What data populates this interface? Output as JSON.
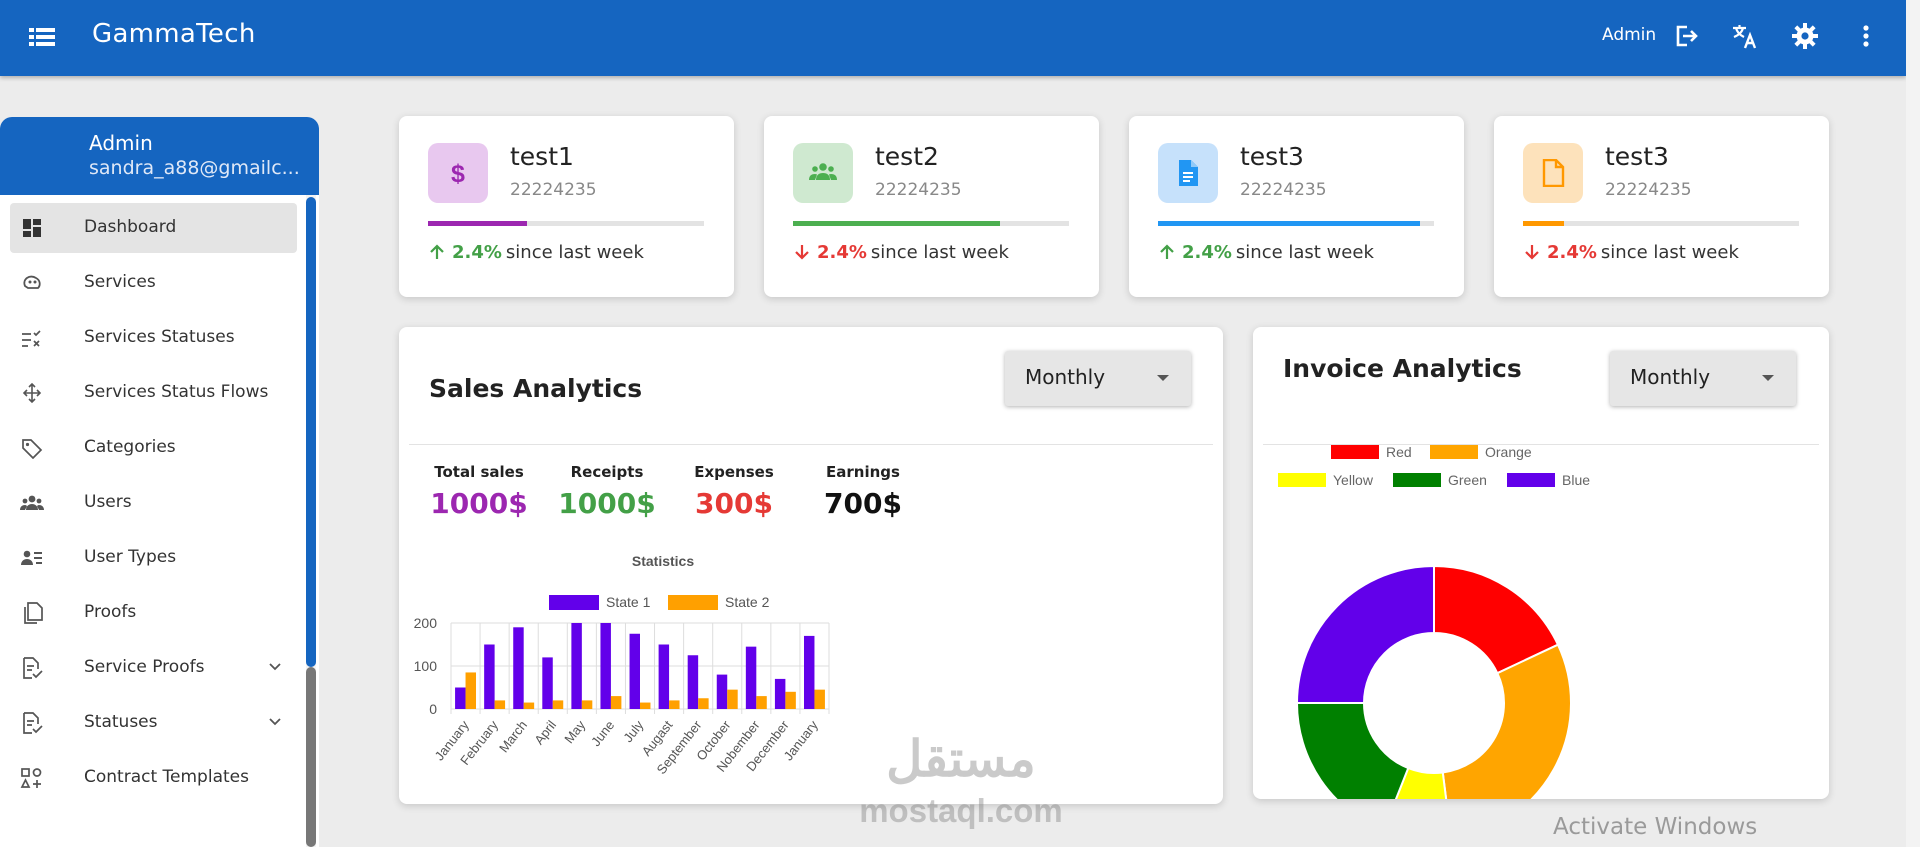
{
  "app": {
    "brand": "GammaTech",
    "user": "Admin"
  },
  "sidebar": {
    "name": "Admin",
    "email": "sandra_a88@gmailc...",
    "items": [
      {
        "label": "Dashboard",
        "icon": "dashboard-icon"
      },
      {
        "label": "Services",
        "icon": "services-icon"
      },
      {
        "label": "Services Statuses",
        "icon": "checklist-icon"
      },
      {
        "label": "Services Status Flows",
        "icon": "flow-icon"
      },
      {
        "label": "Categories",
        "icon": "tags-icon"
      },
      {
        "label": "Users",
        "icon": "users-icon"
      },
      {
        "label": "User Types",
        "icon": "user-types-icon"
      },
      {
        "label": "Proofs",
        "icon": "proofs-icon"
      },
      {
        "label": "Service Proofs",
        "icon": "doc-check-icon"
      },
      {
        "label": "Statuses",
        "icon": "doc-check-icon"
      },
      {
        "label": "Contract Templates",
        "icon": "shapes-icon"
      }
    ]
  },
  "stats": [
    {
      "title": "test1",
      "number": "22224235",
      "pct": "2.4%",
      "suffix": "since last week",
      "direction": "up",
      "progress": 0.36,
      "color": "#9c27b0",
      "bg": "#e8c8ef",
      "icon": "dollar-icon"
    },
    {
      "title": "test2",
      "number": "22224235",
      "pct": "2.4%",
      "suffix": "since last week",
      "direction": "down",
      "progress": 0.75,
      "color": "#4caf50",
      "bg": "#cfe9d0",
      "icon": "group-icon"
    },
    {
      "title": "test3",
      "number": "22224235",
      "pct": "2.4%",
      "suffix": "since last week",
      "direction": "up",
      "progress": 0.95,
      "color": "#2196f3",
      "bg": "#c6e1fb",
      "icon": "document-icon"
    },
    {
      "title": "test3",
      "number": "22224235",
      "pct": "2.4%",
      "suffix": "since last week",
      "direction": "down",
      "progress": 0.15,
      "color": "#ff9800",
      "bg": "#fde2bb",
      "icon": "file-icon"
    }
  ],
  "colors": {
    "up": "#43a047",
    "down": "#e53935",
    "primary": "#1565c0"
  },
  "sales": {
    "title": "Sales Analytics",
    "period": "Monthly",
    "kpis": [
      {
        "label": "Total sales",
        "value": "1000$",
        "color": "#9c27b0"
      },
      {
        "label": "Receipts",
        "value": "1000$",
        "color": "#43a047"
      },
      {
        "label": "Expenses",
        "value": "300$",
        "color": "#e53935"
      },
      {
        "label": "Earnings",
        "value": "700$",
        "color": "#111111"
      }
    ]
  },
  "invoice": {
    "title": "Invoice Analytics",
    "period": "Monthly"
  },
  "chart_data": [
    {
      "type": "bar",
      "title": "Statistics",
      "categories": [
        "January",
        "February",
        "March",
        "April",
        "May",
        "June",
        "July",
        "Augast",
        "September",
        "October",
        "Nobember",
        "December",
        "January"
      ],
      "series": [
        {
          "name": "State 1",
          "color": "#6200ea",
          "values": [
            50,
            150,
            190,
            120,
            200,
            200,
            175,
            150,
            125,
            80,
            145,
            70,
            170
          ]
        },
        {
          "name": "State 2",
          "color": "#ffa000",
          "values": [
            85,
            20,
            15,
            20,
            20,
            30,
            15,
            20,
            25,
            45,
            30,
            40,
            45
          ]
        }
      ],
      "ylim": [
        0,
        200
      ],
      "yticks": [
        0,
        100,
        200
      ],
      "legend": "top"
    },
    {
      "type": "pie",
      "labels": [
        "Red",
        "Orange",
        "Yellow",
        "Green",
        "Blue"
      ],
      "colors": [
        "#ff0000",
        "#ffa500",
        "#ffff00",
        "#008000",
        "#6200ea"
      ],
      "values": [
        18,
        30,
        8,
        19,
        25
      ],
      "legend": "top"
    }
  ],
  "watermark": {
    "text": "Activate Windows",
    "logo_ar": "مستقل",
    "logo_en": "mostaql.com"
  }
}
